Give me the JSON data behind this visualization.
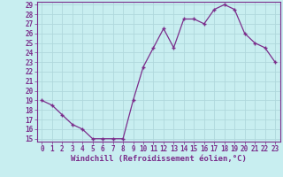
{
  "x": [
    0,
    1,
    2,
    3,
    4,
    5,
    6,
    7,
    8,
    9,
    10,
    11,
    12,
    13,
    14,
    15,
    16,
    17,
    18,
    19,
    20,
    21,
    22,
    23
  ],
  "y": [
    19.0,
    18.5,
    17.5,
    16.5,
    16.0,
    15.0,
    15.0,
    15.0,
    15.0,
    19.0,
    22.5,
    24.5,
    26.5,
    24.5,
    27.5,
    27.5,
    27.0,
    28.5,
    29.0,
    28.5,
    26.0,
    25.0,
    24.5,
    23.0
  ],
  "xlim": [
    -0.5,
    23.5
  ],
  "ylim": [
    14.7,
    29.3
  ],
  "yticks": [
    15,
    16,
    17,
    18,
    19,
    20,
    21,
    22,
    23,
    24,
    25,
    26,
    27,
    28,
    29
  ],
  "xticks": [
    0,
    1,
    2,
    3,
    4,
    5,
    6,
    7,
    8,
    9,
    10,
    11,
    12,
    13,
    14,
    15,
    16,
    17,
    18,
    19,
    20,
    21,
    22,
    23
  ],
  "xlabel": "Windchill (Refroidissement éolien,°C)",
  "line_color": "#7b2d8b",
  "marker": "+",
  "bg_color": "#c8eef0",
  "grid_color": "#b0d8dc",
  "tick_label_fontsize": 5.5,
  "xlabel_fontsize": 6.5
}
